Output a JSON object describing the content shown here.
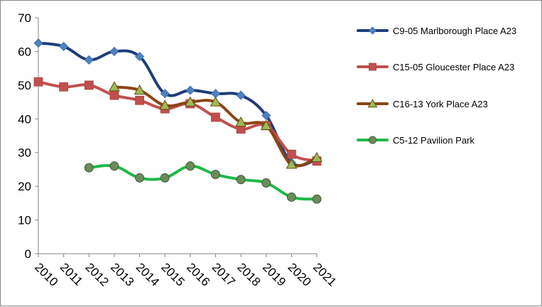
{
  "chart_data": {
    "type": "line",
    "title": "",
    "xlabel": "",
    "ylabel": "",
    "x": [
      "2010",
      "2011",
      "2012",
      "2013",
      "2014",
      "2015",
      "2016",
      "2017",
      "2018",
      "2019",
      "2020",
      "2021"
    ],
    "ylim": [
      0,
      70
    ],
    "yticks": [
      0,
      10,
      20,
      30,
      40,
      50,
      60,
      70
    ],
    "grid": false,
    "legend_position": "right",
    "series": [
      {
        "name": "C9-05 Marlborough Place A23",
        "color": "#1F3D7A",
        "marker_color": "#4F81BD",
        "marker": "diamond",
        "values": [
          62.5,
          61.5,
          57.5,
          60,
          58.5,
          47.5,
          48.5,
          47.5,
          47,
          41,
          27,
          28
        ]
      },
      {
        "name": "C15-05 Gloucester Place A23",
        "color": "#C0504D",
        "marker_color": "#C0504D",
        "marker": "square",
        "values": [
          51,
          49.5,
          50,
          47,
          45.5,
          43,
          44.5,
          40.5,
          37,
          38,
          29.5,
          27.5
        ]
      },
      {
        "name": "C16-13 York Place A23",
        "color": "#8B4513",
        "marker_color": "#9BBB59",
        "marker": "triangle",
        "values": [
          null,
          null,
          null,
          49.5,
          48.5,
          44,
          45,
          45,
          39,
          38,
          26.5,
          28.5
        ]
      },
      {
        "name": "C5-12 Pavilion Park",
        "color": "#1FB84A",
        "marker_color": "#6A8B5A",
        "marker": "circle",
        "values": [
          null,
          null,
          25.5,
          26,
          22.5,
          22.5,
          26,
          23.5,
          22,
          21,
          16.8,
          16.2
        ]
      }
    ]
  }
}
